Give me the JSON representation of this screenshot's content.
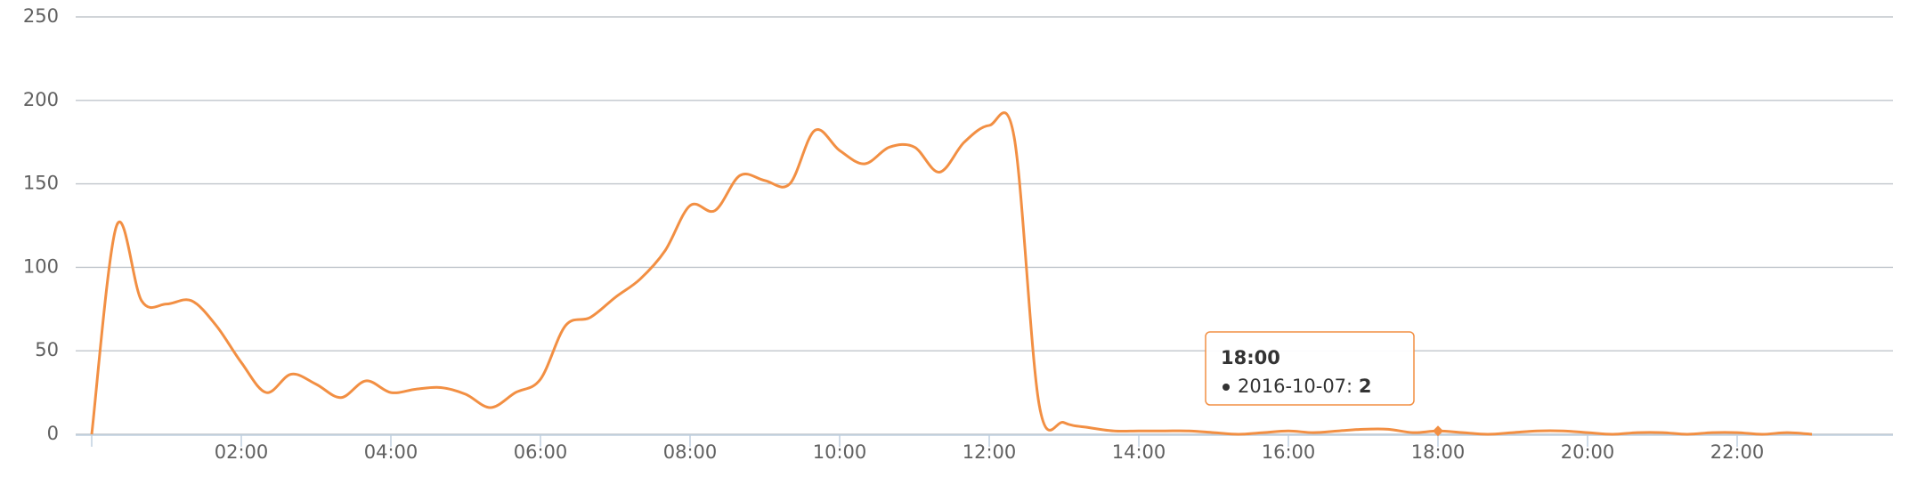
{
  "chart_data": {
    "type": "line",
    "x": [
      0,
      20,
      40,
      60,
      80,
      100,
      120,
      140,
      160,
      180,
      200,
      220,
      240,
      260,
      280,
      300,
      320,
      340,
      360,
      380,
      400,
      420,
      440,
      460,
      480,
      500,
      520,
      540,
      560,
      580,
      600,
      620,
      640,
      660,
      680,
      700,
      720,
      740,
      760,
      780,
      800,
      820,
      840,
      860,
      880,
      900,
      920,
      940,
      960,
      980,
      1000,
      1020,
      1040,
      1060,
      1080,
      1100,
      1120,
      1140,
      1160,
      1180,
      1200,
      1220,
      1240,
      1260,
      1280,
      1300,
      1320,
      1340,
      1360,
      1380
    ],
    "series": [
      {
        "name": "2016-10-07",
        "color": "#f28f43",
        "values": [
          0,
          125,
          80,
          78,
          80,
          65,
          43,
          25,
          36,
          30,
          22,
          32,
          25,
          27,
          28,
          24,
          16,
          25,
          33,
          65,
          70,
          82,
          93,
          110,
          137,
          134,
          155,
          152,
          150,
          182,
          170,
          162,
          172,
          172,
          157,
          175,
          185,
          178,
          18,
          7,
          4,
          2,
          2,
          2,
          2,
          1,
          0,
          1,
          2,
          1,
          2,
          3,
          3,
          1,
          2,
          1,
          0,
          1,
          2,
          2,
          1,
          0,
          1,
          1,
          0,
          1,
          1,
          0,
          1,
          0
        ]
      }
    ],
    "xlim": [
      0,
      1440
    ],
    "xticks": [
      {
        "value": 120,
        "label": "02:00"
      },
      {
        "value": 240,
        "label": "04:00"
      },
      {
        "value": 360,
        "label": "06:00"
      },
      {
        "value": 480,
        "label": "08:00"
      },
      {
        "value": 600,
        "label": "10:00"
      },
      {
        "value": 720,
        "label": "12:00"
      },
      {
        "value": 840,
        "label": "14:00"
      },
      {
        "value": 960,
        "label": "16:00"
      },
      {
        "value": 1080,
        "label": "18:00"
      },
      {
        "value": 1200,
        "label": "20:00"
      },
      {
        "value": 1320,
        "label": "22:00"
      }
    ],
    "ylim": [
      0,
      250
    ],
    "yticks": [
      0,
      50,
      100,
      150,
      200,
      250
    ],
    "grid": true,
    "tooltip": {
      "label": "18:00"
    }
  }
}
